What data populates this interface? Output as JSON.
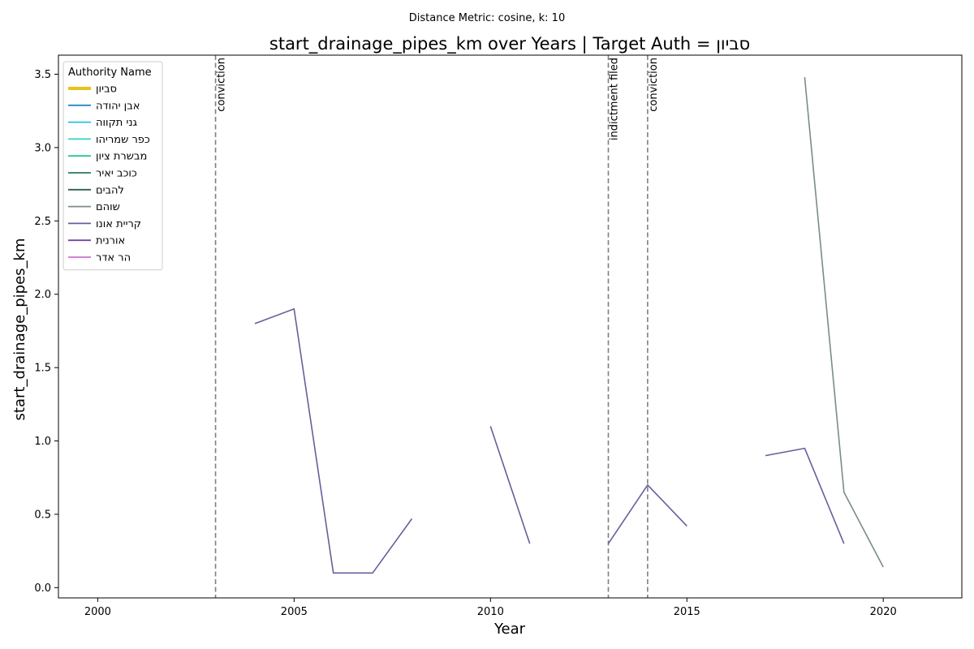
{
  "chart_data": {
    "type": "line",
    "suptitle": "Distance Metric: cosine, k: 10",
    "title": "start_drainage_pipes_km over Years | Target Auth = סביון",
    "xlabel": "Year",
    "ylabel": "start_drainage_pipes_km",
    "xlim": [
      1999,
      2022
    ],
    "ylim": [
      -0.07,
      3.63
    ],
    "xticks": [
      2000,
      2005,
      2010,
      2015,
      2020
    ],
    "yticks": [
      0.0,
      0.5,
      1.0,
      1.5,
      2.0,
      2.5,
      3.0,
      3.5
    ],
    "grid": false,
    "legend": {
      "title": "Authority Name",
      "placement": "top-left"
    },
    "series": [
      {
        "name": "סביון",
        "color": "#e8c31a",
        "bold": true,
        "points": []
      },
      {
        "name": "אבן יהודה",
        "color": "#1f8ac9",
        "points": []
      },
      {
        "name": "גני תקווה",
        "color": "#22c3e6",
        "points": []
      },
      {
        "name": "כפר שמריהו",
        "color": "#30d6c2",
        "points": []
      },
      {
        "name": "מבשרת ציון",
        "color": "#2dc58a",
        "points": []
      },
      {
        "name": "כוכב יאיר",
        "color": "#2a7a5c",
        "points": []
      },
      {
        "name": "להבים",
        "color": "#2e5e4e",
        "points": []
      },
      {
        "name": "שוהם",
        "color": "#7b8c86",
        "points": [
          [
            2018,
            3.48
          ],
          [
            2019,
            0.65
          ],
          [
            2020,
            0.14
          ]
        ]
      },
      {
        "name": "קריית אונו",
        "color": "#65609a",
        "segments": [
          [
            [
              2004,
              1.8
            ],
            [
              2005,
              1.9
            ],
            [
              2006,
              0.1
            ],
            [
              2007,
              0.1
            ],
            [
              2008,
              0.47
            ]
          ],
          [
            [
              2010,
              1.1
            ],
            [
              2011,
              0.3
            ]
          ],
          [
            [
              2013,
              0.3
            ],
            [
              2014,
              0.7
            ],
            [
              2015,
              0.42
            ]
          ],
          [
            [
              2017,
              0.9
            ],
            [
              2018,
              0.95
            ],
            [
              2019,
              0.3
            ]
          ]
        ]
      },
      {
        "name": "אורנית",
        "color": "#7a3fb5",
        "points": []
      },
      {
        "name": "הר אדר",
        "color": "#cf6fd6",
        "points": []
      }
    ],
    "events": [
      {
        "x": 2003,
        "label": "conviction"
      },
      {
        "x": 2013,
        "label": "indictment filed"
      },
      {
        "x": 2014,
        "label": "conviction"
      }
    ]
  }
}
